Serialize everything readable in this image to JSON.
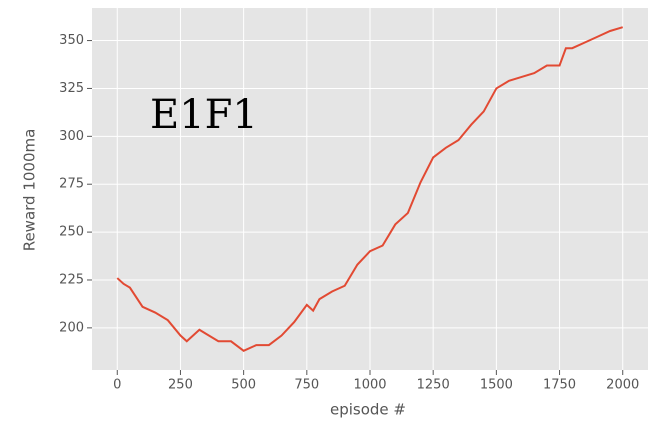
{
  "chart_data": {
    "type": "line",
    "xlabel": "episode #",
    "ylabel": "Reward 1000ma",
    "annotation": "E1F1",
    "x": [
      0,
      25,
      50,
      100,
      150,
      200,
      250,
      275,
      300,
      325,
      350,
      400,
      450,
      500,
      550,
      600,
      650,
      700,
      750,
      775,
      800,
      850,
      900,
      950,
      1000,
      1050,
      1100,
      1150,
      1200,
      1250,
      1300,
      1350,
      1400,
      1450,
      1500,
      1550,
      1600,
      1650,
      1700,
      1750,
      1775,
      1800,
      1850,
      1900,
      1950,
      2000
    ],
    "series": [
      {
        "name": "reward",
        "color": "#e24a33",
        "values": [
          226,
          223,
          221,
          211,
          208,
          204,
          196,
          193,
          196,
          199,
          197,
          193,
          193,
          188,
          191,
          191,
          196,
          203,
          212,
          209,
          215,
          219,
          222,
          233,
          240,
          243,
          254,
          260,
          276,
          289,
          294,
          298,
          306,
          313,
          325,
          329,
          331,
          333,
          337,
          337,
          346,
          346,
          349,
          352,
          355,
          357
        ]
      }
    ],
    "xlim": [
      -100,
      2100
    ],
    "xticks": [
      0,
      250,
      500,
      750,
      1000,
      1250,
      1500,
      1750,
      2000
    ],
    "ylim": [
      178,
      367
    ],
    "yticks": [
      200,
      225,
      250,
      275,
      300,
      325,
      350
    ],
    "grid": true,
    "background": "#e5e5e5"
  }
}
